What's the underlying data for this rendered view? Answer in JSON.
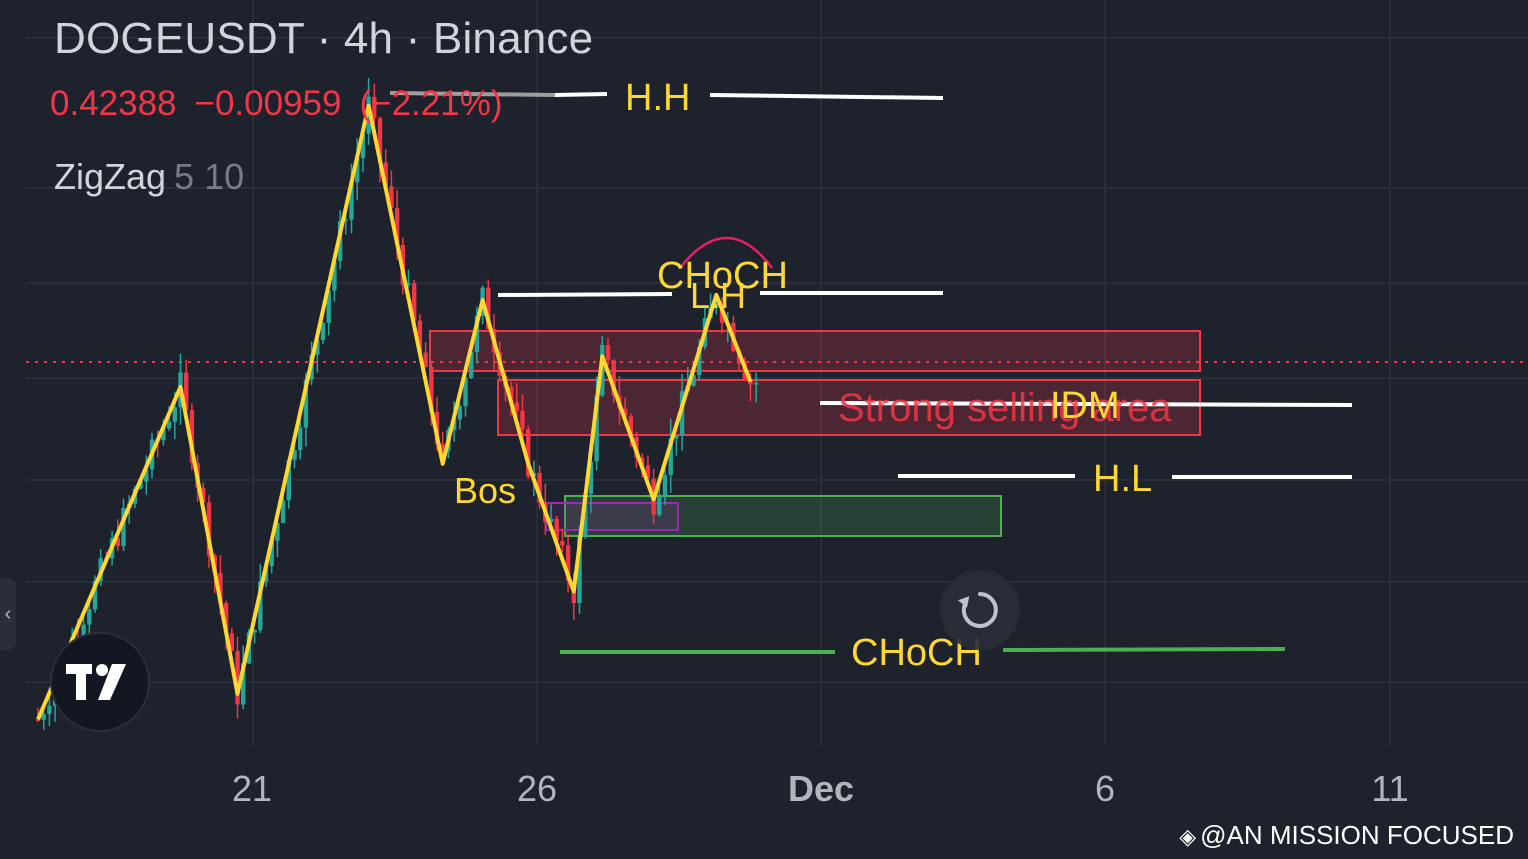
{
  "header": {
    "symbol_line": "DOGEUSDT · 4h · Binance",
    "price": "0.42388",
    "change": "−0.00959",
    "change_pct": "(−2.21%)",
    "indicator": "ZigZag",
    "indicator_params": "5 10"
  },
  "colors": {
    "background": "#1e222d",
    "bull": "#26a69a",
    "bear": "#f23645",
    "zigzag": "#fdd835",
    "annotation_white": "#ffffff",
    "choch_green": "#4caf50"
  },
  "icons": {
    "tradingview_logo": "tradingview-logo",
    "reset": "reset-icon",
    "left_collapse": "chevron-left-icon",
    "watermark": "binance-icon"
  },
  "watermark": "@AN MISSION FOCUSED",
  "chart_data": {
    "type": "candlestick",
    "x_axis_ticks": [
      "21",
      "26",
      "Dec",
      "6",
      "11"
    ],
    "y_scale": "price (no visible axis)",
    "last_price": 0.42388,
    "grid": true,
    "bar_interval": "4h",
    "zigzag_pivots_bar_index": [
      0,
      25,
      35,
      58,
      71,
      78,
      86,
      94,
      99,
      108,
      119,
      125
    ],
    "zigzag_pivot_prices": [
      0.365,
      0.43,
      0.37,
      0.485,
      0.415,
      0.447,
      0.415,
      0.39,
      0.436,
      0.408,
      0.448,
      0.431
    ],
    "annotations": [
      {
        "text": "H.H",
        "kind": "level",
        "color": "white"
      },
      {
        "text": "CHoCH",
        "kind": "label",
        "color": "yellow"
      },
      {
        "text": "L.H",
        "kind": "level",
        "color": "white"
      },
      {
        "text": "IDM",
        "kind": "level",
        "color": "white"
      },
      {
        "text": "Strong selling area",
        "kind": "zone",
        "color": "red"
      },
      {
        "text": "H.L",
        "kind": "level",
        "color": "white"
      },
      {
        "text": "Bos",
        "kind": "label",
        "color": "yellow"
      },
      {
        "text": "CHoCH",
        "kind": "level",
        "color": "green"
      }
    ]
  }
}
